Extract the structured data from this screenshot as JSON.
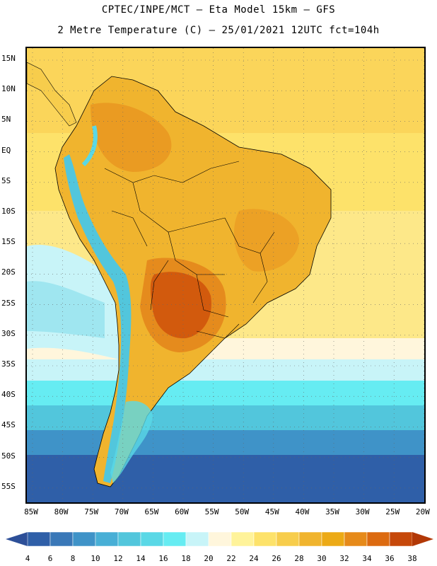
{
  "header": {
    "line1": "CPTEC/INPE/MCT –  Eta Model 15km – GFS",
    "line2": "2 Metre Temperature (C) – 25/01/2021 12UTC fct=104h"
  },
  "lat_labels": [
    "15N",
    "10N",
    "5N",
    "EQ",
    "5S",
    "10S",
    "15S",
    "20S",
    "25S",
    "30S",
    "35S",
    "40S",
    "45S",
    "50S",
    "55S"
  ],
  "lon_labels": [
    "85W",
    "80W",
    "75W",
    "70W",
    "65W",
    "60W",
    "55W",
    "50W",
    "45W",
    "40W",
    "35W",
    "30W",
    "25W",
    "20W"
  ],
  "colorbar": {
    "labels": [
      "4",
      "6",
      "8",
      "10",
      "12",
      "14",
      "16",
      "18",
      "20",
      "22",
      "24",
      "26",
      "28",
      "30",
      "32",
      "34",
      "36",
      "38"
    ],
    "colors": [
      "#2f5fa8",
      "#3a78b8",
      "#3f93c8",
      "#48afd6",
      "#52c6dc",
      "#5ad8e6",
      "#66ecf2",
      "#c8f4f8",
      "#fff6dc",
      "#fff39a",
      "#fde26a",
      "#f7cd4c",
      "#f0b42e",
      "#ecaa16",
      "#e68a1a",
      "#dc6a10",
      "#c6480a"
    ],
    "low_color": "#2d4f98",
    "high_color": "#b23806"
  }
}
